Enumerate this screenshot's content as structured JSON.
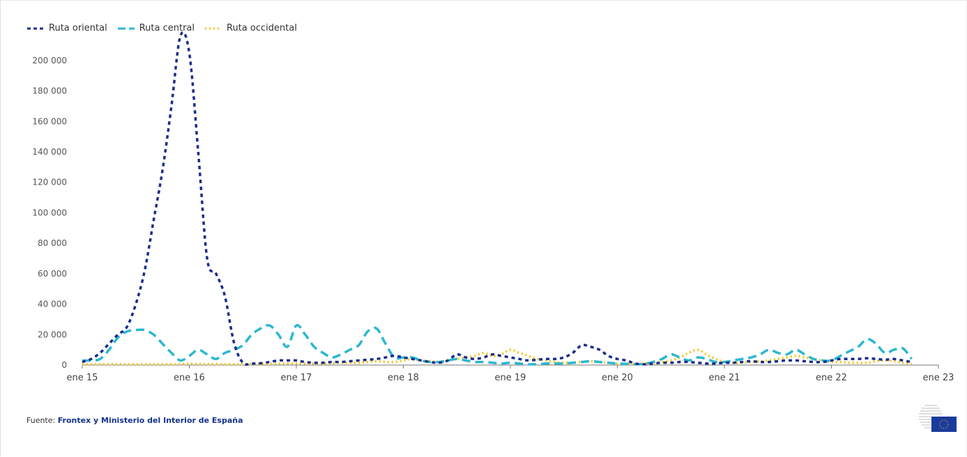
{
  "legend": {
    "items": [
      {
        "label": "Ruta oriental",
        "color": "#1a2d8c",
        "dash": "5,5"
      },
      {
        "label": "Ruta central",
        "color": "#2bb7d1",
        "dash": "12,7"
      },
      {
        "label": "Ruta occidental",
        "color": "#f2c313",
        "dash": "2,4"
      }
    ]
  },
  "source": {
    "prefix": "Fuente:",
    "text": "Frontex y Ministerio del Interior de España"
  },
  "chart_data": {
    "type": "line",
    "y_ticks": [
      "0",
      "20 000",
      "40 000",
      "60 000",
      "80 000",
      "100 000",
      "120 000",
      "140 000",
      "160 000",
      "180 000",
      "200 000"
    ],
    "ylim": [
      0,
      210000
    ],
    "x_ticks": [
      "ene 15",
      "ene 16",
      "ene 17",
      "ene 18",
      "ene 19",
      "ene 20",
      "ene 21",
      "ene 22",
      "ene 23"
    ],
    "xlim": [
      0,
      96
    ],
    "grid": false,
    "legend_position": "top-left",
    "series": [
      {
        "name": "Ruta oriental",
        "color": "#1a2d8c",
        "dash": "5,5",
        "points": [
          [
            0,
            2000
          ],
          [
            1,
            4000
          ],
          [
            2,
            8000
          ],
          [
            3,
            14000
          ],
          [
            4,
            20000
          ],
          [
            5,
            25000
          ],
          [
            6,
            40000
          ],
          [
            7,
            62000
          ],
          [
            8,
            95000
          ],
          [
            9,
            128000
          ],
          [
            10,
            170000
          ],
          [
            11,
            216000
          ],
          [
            12,
            205000
          ],
          [
            13,
            140000
          ],
          [
            14,
            70000
          ],
          [
            15,
            60000
          ],
          [
            16,
            45000
          ],
          [
            17,
            15000
          ],
          [
            18,
            1500
          ],
          [
            19,
            1000
          ],
          [
            20,
            1200
          ],
          [
            21,
            2000
          ],
          [
            22,
            3000
          ],
          [
            23,
            3000
          ],
          [
            24,
            3000
          ],
          [
            25,
            2000
          ],
          [
            26,
            1500
          ],
          [
            27,
            1500
          ],
          [
            28,
            2000
          ],
          [
            29,
            2000
          ],
          [
            30,
            2500
          ],
          [
            31,
            3000
          ],
          [
            32,
            3500
          ],
          [
            33,
            4000
          ],
          [
            34,
            5000
          ],
          [
            35,
            6000
          ],
          [
            36,
            5000
          ],
          [
            37,
            4000
          ],
          [
            38,
            3000
          ],
          [
            39,
            2000
          ],
          [
            40,
            1500
          ],
          [
            41,
            3000
          ],
          [
            42,
            7000
          ],
          [
            43,
            5000
          ],
          [
            44,
            4000
          ],
          [
            45,
            5000
          ],
          [
            46,
            7000
          ],
          [
            47,
            6000
          ],
          [
            48,
            5000
          ],
          [
            49,
            4000
          ],
          [
            50,
            3000
          ],
          [
            51,
            3500
          ],
          [
            52,
            4000
          ],
          [
            53,
            4000
          ],
          [
            54,
            5000
          ],
          [
            55,
            8000
          ],
          [
            56,
            13000
          ],
          [
            57,
            12000
          ],
          [
            58,
            10000
          ],
          [
            59,
            6000
          ],
          [
            60,
            4000
          ],
          [
            61,
            3000
          ],
          [
            62,
            1000
          ],
          [
            63,
            500
          ],
          [
            64,
            1000
          ],
          [
            65,
            1500
          ],
          [
            66,
            1500
          ],
          [
            67,
            2000
          ],
          [
            68,
            2000
          ],
          [
            69,
            1500
          ],
          [
            70,
            1000
          ],
          [
            71,
            1000
          ],
          [
            72,
            1500
          ],
          [
            73,
            1500
          ],
          [
            74,
            2000
          ],
          [
            75,
            2500
          ],
          [
            76,
            2000
          ],
          [
            77,
            2000
          ],
          [
            78,
            2500
          ],
          [
            79,
            3000
          ],
          [
            80,
            3000
          ],
          [
            81,
            2500
          ],
          [
            82,
            2000
          ],
          [
            83,
            2000
          ],
          [
            84,
            3000
          ],
          [
            85,
            4000
          ],
          [
            86,
            4000
          ],
          [
            87,
            4000
          ],
          [
            88,
            4500
          ],
          [
            89,
            4000
          ],
          [
            90,
            3500
          ],
          [
            91,
            4000
          ],
          [
            92,
            3000
          ],
          [
            93,
            2000
          ]
        ]
      },
      {
        "name": "Ruta central",
        "color": "#2bb7d1",
        "dash": "12,7",
        "points": [
          [
            0,
            3000
          ],
          [
            1,
            3000
          ],
          [
            2,
            4000
          ],
          [
            3,
            10000
          ],
          [
            4,
            18000
          ],
          [
            5,
            22000
          ],
          [
            6,
            23000
          ],
          [
            7,
            23000
          ],
          [
            8,
            20000
          ],
          [
            9,
            14000
          ],
          [
            10,
            8000
          ],
          [
            11,
            3000
          ],
          [
            12,
            6000
          ],
          [
            13,
            10000
          ],
          [
            14,
            7000
          ],
          [
            15,
            4000
          ],
          [
            16,
            8000
          ],
          [
            17,
            10000
          ],
          [
            18,
            13000
          ],
          [
            19,
            20000
          ],
          [
            20,
            24000
          ],
          [
            21,
            26000
          ],
          [
            22,
            20000
          ],
          [
            23,
            12000
          ],
          [
            24,
            26000
          ],
          [
            25,
            20000
          ],
          [
            26,
            12000
          ],
          [
            27,
            8000
          ],
          [
            28,
            5000
          ],
          [
            29,
            7000
          ],
          [
            30,
            10000
          ],
          [
            31,
            13000
          ],
          [
            32,
            22000
          ],
          [
            33,
            24000
          ],
          [
            34,
            14000
          ],
          [
            35,
            5000
          ],
          [
            36,
            5000
          ],
          [
            37,
            5000
          ],
          [
            38,
            3000
          ],
          [
            39,
            2000
          ],
          [
            40,
            2000
          ],
          [
            41,
            3000
          ],
          [
            42,
            4000
          ],
          [
            43,
            3000
          ],
          [
            44,
            2000
          ],
          [
            45,
            2000
          ],
          [
            46,
            1500
          ],
          [
            47,
            1000
          ],
          [
            48,
            1500
          ],
          [
            49,
            1000
          ],
          [
            50,
            500
          ],
          [
            51,
            500
          ],
          [
            52,
            1000
          ],
          [
            53,
            1000
          ],
          [
            54,
            1000
          ],
          [
            55,
            1500
          ],
          [
            56,
            2000
          ],
          [
            57,
            2500
          ],
          [
            58,
            2000
          ],
          [
            59,
            1500
          ],
          [
            60,
            1000
          ],
          [
            61,
            800
          ],
          [
            62,
            500
          ],
          [
            63,
            800
          ],
          [
            64,
            2000
          ],
          [
            65,
            4000
          ],
          [
            66,
            7000
          ],
          [
            67,
            5000
          ],
          [
            68,
            3000
          ],
          [
            69,
            5000
          ],
          [
            70,
            4000
          ],
          [
            71,
            2000
          ],
          [
            72,
            2000
          ],
          [
            73,
            3000
          ],
          [
            74,
            4000
          ],
          [
            75,
            5000
          ],
          [
            76,
            7000
          ],
          [
            77,
            10000
          ],
          [
            78,
            8000
          ],
          [
            79,
            7000
          ],
          [
            80,
            10000
          ],
          [
            81,
            7000
          ],
          [
            82,
            4000
          ],
          [
            83,
            3000
          ],
          [
            84,
            3000
          ],
          [
            85,
            6000
          ],
          [
            86,
            9000
          ],
          [
            87,
            12000
          ],
          [
            88,
            17000
          ],
          [
            89,
            14000
          ],
          [
            90,
            8000
          ],
          [
            91,
            10000
          ],
          [
            92,
            11000
          ],
          [
            93,
            4000
          ]
        ]
      },
      {
        "name": "Ruta occidental",
        "color": "#f2c313",
        "dash": "2,4",
        "points": [
          [
            0,
            500
          ],
          [
            1,
            500
          ],
          [
            2,
            500
          ],
          [
            3,
            500
          ],
          [
            4,
            500
          ],
          [
            5,
            500
          ],
          [
            6,
            500
          ],
          [
            7,
            500
          ],
          [
            8,
            500
          ],
          [
            9,
            500
          ],
          [
            10,
            500
          ],
          [
            11,
            600
          ],
          [
            12,
            800
          ],
          [
            13,
            700
          ],
          [
            14,
            600
          ],
          [
            15,
            600
          ],
          [
            16,
            600
          ],
          [
            17,
            500
          ],
          [
            18,
            600
          ],
          [
            19,
            700
          ],
          [
            20,
            800
          ],
          [
            21,
            800
          ],
          [
            22,
            900
          ],
          [
            23,
            1000
          ],
          [
            24,
            1000
          ],
          [
            25,
            1000
          ],
          [
            26,
            1000
          ],
          [
            27,
            1000
          ],
          [
            28,
            1200
          ],
          [
            29,
            1500
          ],
          [
            30,
            1500
          ],
          [
            31,
            1500
          ],
          [
            32,
            2000
          ],
          [
            33,
            2500
          ],
          [
            34,
            2000
          ],
          [
            35,
            2000
          ],
          [
            36,
            3000
          ],
          [
            37,
            4000
          ],
          [
            38,
            3000
          ],
          [
            39,
            2500
          ],
          [
            40,
            2000
          ],
          [
            41,
            3000
          ],
          [
            42,
            4000
          ],
          [
            43,
            5000
          ],
          [
            44,
            6000
          ],
          [
            45,
            8000
          ],
          [
            46,
            6000
          ],
          [
            47,
            7000
          ],
          [
            48,
            10000
          ],
          [
            49,
            8000
          ],
          [
            50,
            6000
          ],
          [
            51,
            4000
          ],
          [
            52,
            3000
          ],
          [
            53,
            2000
          ],
          [
            54,
            1500
          ],
          [
            55,
            1500
          ],
          [
            56,
            2000
          ],
          [
            57,
            2500
          ],
          [
            58,
            2000
          ],
          [
            59,
            1500
          ],
          [
            60,
            1000
          ],
          [
            61,
            800
          ],
          [
            62,
            800
          ],
          [
            63,
            1000
          ],
          [
            64,
            1500
          ],
          [
            65,
            2000
          ],
          [
            66,
            3000
          ],
          [
            67,
            5000
          ],
          [
            68,
            8000
          ],
          [
            69,
            10000
          ],
          [
            70,
            7000
          ],
          [
            71,
            4000
          ],
          [
            72,
            2000
          ],
          [
            73,
            1500
          ],
          [
            74,
            1500
          ],
          [
            75,
            2000
          ],
          [
            76,
            2500
          ],
          [
            77,
            3000
          ],
          [
            78,
            4000
          ],
          [
            79,
            5000
          ],
          [
            80,
            6000
          ],
          [
            81,
            5000
          ],
          [
            82,
            4000
          ],
          [
            83,
            3000
          ],
          [
            84,
            2000
          ],
          [
            85,
            2000
          ],
          [
            86,
            1500
          ],
          [
            87,
            1500
          ],
          [
            88,
            1500
          ],
          [
            89,
            2500
          ],
          [
            90,
            3000
          ],
          [
            91,
            2500
          ],
          [
            92,
            1500
          ],
          [
            93,
            1000
          ]
        ]
      }
    ]
  }
}
